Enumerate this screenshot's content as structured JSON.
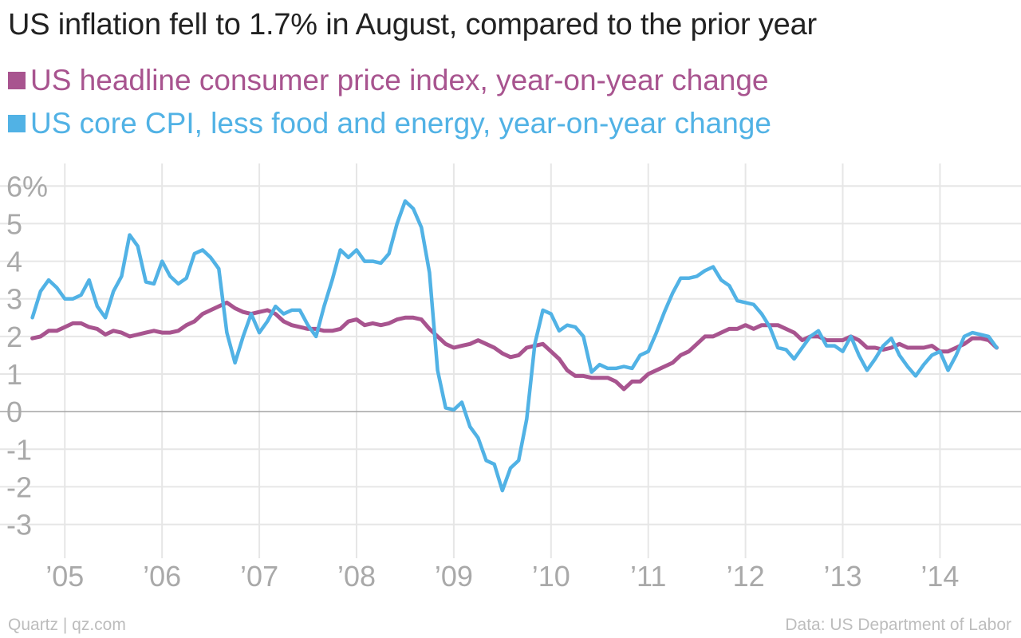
{
  "title": "US inflation fell to 1.7% in August, compared to the prior year",
  "footer": {
    "source_left": "Quartz | qz.com",
    "source_right": "Data: US Department of Labor"
  },
  "colors": {
    "headline": "#a8548f",
    "core": "#51b2e5",
    "grid": "#e6e6e6",
    "zero": "#aaaaaa",
    "tick": "#a9a9a9"
  },
  "chart_data": {
    "type": "line",
    "title": "US inflation fell to 1.7% in August, compared to the prior year",
    "xlabel": "",
    "ylabel": "",
    "ylim": [
      -3.9,
      6.6
    ],
    "yticks": [
      6,
      5,
      4,
      3,
      2,
      1,
      0,
      -1,
      -2,
      -3
    ],
    "ytick_labels": [
      "6%",
      "5",
      "4",
      "3",
      "2",
      "1",
      "0",
      "-1",
      "-2",
      "-3"
    ],
    "xlim": [
      "2004-05",
      "2014-11"
    ],
    "xticks": [
      "2005-01",
      "2006-01",
      "2007-01",
      "2008-01",
      "2009-01",
      "2010-01",
      "2011-01",
      "2012-01",
      "2013-01",
      "2014-01"
    ],
    "xtick_labels": [
      "’05",
      "’06",
      "’07",
      "’08",
      "’09",
      "’10",
      "’11",
      "’12",
      "’13",
      "’14"
    ],
    "grid": true,
    "legend_position": "top-left",
    "series": [
      {
        "name": "US headline consumer price index, year-on-year change",
        "color": "#a8548f",
        "points": [
          [
            "2004-09",
            1.95
          ],
          [
            "2004-10",
            2.0
          ],
          [
            "2004-11",
            2.15
          ],
          [
            "2004-12",
            2.15
          ],
          [
            "2005-01",
            2.25
          ],
          [
            "2005-02",
            2.35
          ],
          [
            "2005-03",
            2.35
          ],
          [
            "2005-04",
            2.25
          ],
          [
            "2005-05",
            2.2
          ],
          [
            "2005-06",
            2.05
          ],
          [
            "2005-07",
            2.15
          ],
          [
            "2005-08",
            2.1
          ],
          [
            "2005-09",
            2.0
          ],
          [
            "2005-10",
            2.05
          ],
          [
            "2005-11",
            2.1
          ],
          [
            "2005-12",
            2.15
          ],
          [
            "2006-01",
            2.1
          ],
          [
            "2006-02",
            2.1
          ],
          [
            "2006-03",
            2.15
          ],
          [
            "2006-04",
            2.3
          ],
          [
            "2006-05",
            2.4
          ],
          [
            "2006-06",
            2.6
          ],
          [
            "2006-07",
            2.7
          ],
          [
            "2006-08",
            2.8
          ],
          [
            "2006-09",
            2.9
          ],
          [
            "2006-10",
            2.75
          ],
          [
            "2006-11",
            2.65
          ],
          [
            "2006-12",
            2.6
          ],
          [
            "2007-01",
            2.65
          ],
          [
            "2007-02",
            2.7
          ],
          [
            "2007-03",
            2.6
          ],
          [
            "2007-04",
            2.4
          ],
          [
            "2007-05",
            2.3
          ],
          [
            "2007-06",
            2.25
          ],
          [
            "2007-07",
            2.2
          ],
          [
            "2007-08",
            2.2
          ],
          [
            "2007-09",
            2.15
          ],
          [
            "2007-10",
            2.15
          ],
          [
            "2007-11",
            2.2
          ],
          [
            "2007-12",
            2.4
          ],
          [
            "2008-01",
            2.45
          ],
          [
            "2008-02",
            2.3
          ],
          [
            "2008-03",
            2.35
          ],
          [
            "2008-04",
            2.3
          ],
          [
            "2008-05",
            2.35
          ],
          [
            "2008-06",
            2.45
          ],
          [
            "2008-07",
            2.5
          ],
          [
            "2008-08",
            2.5
          ],
          [
            "2008-09",
            2.45
          ],
          [
            "2008-10",
            2.2
          ],
          [
            "2008-11",
            2.0
          ],
          [
            "2008-12",
            1.8
          ],
          [
            "2009-01",
            1.7
          ],
          [
            "2009-02",
            1.75
          ],
          [
            "2009-03",
            1.8
          ],
          [
            "2009-04",
            1.9
          ],
          [
            "2009-05",
            1.8
          ],
          [
            "2009-06",
            1.7
          ],
          [
            "2009-07",
            1.55
          ],
          [
            "2009-08",
            1.45
          ],
          [
            "2009-09",
            1.5
          ],
          [
            "2009-10",
            1.7
          ],
          [
            "2009-11",
            1.75
          ],
          [
            "2009-12",
            1.8
          ],
          [
            "2010-01",
            1.6
          ],
          [
            "2010-02",
            1.4
          ],
          [
            "2010-03",
            1.1
          ],
          [
            "2010-04",
            0.95
          ],
          [
            "2010-05",
            0.95
          ],
          [
            "2010-06",
            0.9
          ],
          [
            "2010-07",
            0.9
          ],
          [
            "2010-08",
            0.9
          ],
          [
            "2010-09",
            0.8
          ],
          [
            "2010-10",
            0.6
          ],
          [
            "2010-11",
            0.8
          ],
          [
            "2010-12",
            0.8
          ],
          [
            "2011-01",
            1.0
          ],
          [
            "2011-02",
            1.1
          ],
          [
            "2011-03",
            1.2
          ],
          [
            "2011-04",
            1.3
          ],
          [
            "2011-05",
            1.5
          ],
          [
            "2011-06",
            1.6
          ],
          [
            "2011-07",
            1.8
          ],
          [
            "2011-08",
            2.0
          ],
          [
            "2011-09",
            2.0
          ],
          [
            "2011-10",
            2.1
          ],
          [
            "2011-11",
            2.2
          ],
          [
            "2011-12",
            2.2
          ],
          [
            "2012-01",
            2.3
          ],
          [
            "2012-02",
            2.2
          ],
          [
            "2012-03",
            2.3
          ],
          [
            "2012-04",
            2.3
          ],
          [
            "2012-05",
            2.3
          ],
          [
            "2012-06",
            2.2
          ],
          [
            "2012-07",
            2.1
          ],
          [
            "2012-08",
            1.9
          ],
          [
            "2012-09",
            2.0
          ],
          [
            "2012-10",
            2.0
          ],
          [
            "2012-11",
            1.9
          ],
          [
            "2012-12",
            1.9
          ],
          [
            "2013-01",
            1.9
          ],
          [
            "2013-02",
            2.0
          ],
          [
            "2013-03",
            1.9
          ],
          [
            "2013-04",
            1.7
          ],
          [
            "2013-05",
            1.7
          ],
          [
            "2013-06",
            1.65
          ],
          [
            "2013-07",
            1.7
          ],
          [
            "2013-08",
            1.8
          ],
          [
            "2013-09",
            1.7
          ],
          [
            "2013-10",
            1.7
          ],
          [
            "2013-11",
            1.7
          ],
          [
            "2013-12",
            1.75
          ],
          [
            "2014-01",
            1.6
          ],
          [
            "2014-02",
            1.6
          ],
          [
            "2014-03",
            1.7
          ],
          [
            "2014-04",
            1.8
          ],
          [
            "2014-05",
            1.95
          ],
          [
            "2014-06",
            1.95
          ],
          [
            "2014-07",
            1.9
          ],
          [
            "2014-08",
            1.7
          ]
        ]
      },
      {
        "name": "US core CPI, less food and energy, year-on-year change",
        "color": "#51b2e5",
        "points": [
          [
            "2004-09",
            2.5
          ],
          [
            "2004-10",
            3.2
          ],
          [
            "2004-11",
            3.5
          ],
          [
            "2004-12",
            3.3
          ],
          [
            "2005-01",
            3.0
          ],
          [
            "2005-02",
            3.0
          ],
          [
            "2005-03",
            3.1
          ],
          [
            "2005-04",
            3.5
          ],
          [
            "2005-05",
            2.8
          ],
          [
            "2005-06",
            2.5
          ],
          [
            "2005-07",
            3.2
          ],
          [
            "2005-08",
            3.6
          ],
          [
            "2005-09",
            4.7
          ],
          [
            "2005-10",
            4.4
          ],
          [
            "2005-11",
            3.45
          ],
          [
            "2005-12",
            3.4
          ],
          [
            "2006-01",
            4.0
          ],
          [
            "2006-02",
            3.6
          ],
          [
            "2006-03",
            3.4
          ],
          [
            "2006-04",
            3.55
          ],
          [
            "2006-05",
            4.2
          ],
          [
            "2006-06",
            4.3
          ],
          [
            "2006-07",
            4.1
          ],
          [
            "2006-08",
            3.8
          ],
          [
            "2006-09",
            2.1
          ],
          [
            "2006-10",
            1.3
          ],
          [
            "2006-11",
            2.0
          ],
          [
            "2006-12",
            2.6
          ],
          [
            "2007-01",
            2.1
          ],
          [
            "2007-02",
            2.4
          ],
          [
            "2007-03",
            2.8
          ],
          [
            "2007-04",
            2.6
          ],
          [
            "2007-05",
            2.7
          ],
          [
            "2007-06",
            2.7
          ],
          [
            "2007-07",
            2.3
          ],
          [
            "2007-08",
            2.0
          ],
          [
            "2007-09",
            2.8
          ],
          [
            "2007-10",
            3.5
          ],
          [
            "2007-11",
            4.3
          ],
          [
            "2007-12",
            4.1
          ],
          [
            "2008-01",
            4.3
          ],
          [
            "2008-02",
            4.0
          ],
          [
            "2008-03",
            4.0
          ],
          [
            "2008-04",
            3.95
          ],
          [
            "2008-05",
            4.2
          ],
          [
            "2008-06",
            5.0
          ],
          [
            "2008-07",
            5.6
          ],
          [
            "2008-08",
            5.4
          ],
          [
            "2008-09",
            4.9
          ],
          [
            "2008-10",
            3.7
          ],
          [
            "2008-11",
            1.1
          ],
          [
            "2008-12",
            0.1
          ],
          [
            "2009-01",
            0.05
          ],
          [
            "2009-02",
            0.25
          ],
          [
            "2009-03",
            -0.4
          ],
          [
            "2009-04",
            -0.7
          ],
          [
            "2009-05",
            -1.3
          ],
          [
            "2009-06",
            -1.4
          ],
          [
            "2009-07",
            -2.1
          ],
          [
            "2009-08",
            -1.5
          ],
          [
            "2009-09",
            -1.3
          ],
          [
            "2009-10",
            -0.2
          ],
          [
            "2009-11",
            1.8
          ],
          [
            "2009-12",
            2.7
          ],
          [
            "2010-01",
            2.6
          ],
          [
            "2010-02",
            2.15
          ],
          [
            "2010-03",
            2.3
          ],
          [
            "2010-04",
            2.25
          ],
          [
            "2010-05",
            2.0
          ],
          [
            "2010-06",
            1.05
          ],
          [
            "2010-07",
            1.25
          ],
          [
            "2010-08",
            1.15
          ],
          [
            "2010-09",
            1.15
          ],
          [
            "2010-10",
            1.2
          ],
          [
            "2010-11",
            1.15
          ],
          [
            "2010-12",
            1.5
          ],
          [
            "2011-01",
            1.6
          ],
          [
            "2011-02",
            2.1
          ],
          [
            "2011-03",
            2.65
          ],
          [
            "2011-04",
            3.15
          ],
          [
            "2011-05",
            3.55
          ],
          [
            "2011-06",
            3.55
          ],
          [
            "2011-07",
            3.6
          ],
          [
            "2011-08",
            3.75
          ],
          [
            "2011-09",
            3.85
          ],
          [
            "2011-10",
            3.5
          ],
          [
            "2011-11",
            3.35
          ],
          [
            "2011-12",
            2.95
          ],
          [
            "2012-01",
            2.9
          ],
          [
            "2012-02",
            2.85
          ],
          [
            "2012-03",
            2.6
          ],
          [
            "2012-04",
            2.25
          ],
          [
            "2012-05",
            1.7
          ],
          [
            "2012-06",
            1.65
          ],
          [
            "2012-07",
            1.4
          ],
          [
            "2012-08",
            1.7
          ],
          [
            "2012-09",
            2.0
          ],
          [
            "2012-10",
            2.15
          ],
          [
            "2012-11",
            1.75
          ],
          [
            "2012-12",
            1.75
          ],
          [
            "2013-01",
            1.6
          ],
          [
            "2013-02",
            2.0
          ],
          [
            "2013-03",
            1.5
          ],
          [
            "2013-04",
            1.1
          ],
          [
            "2013-05",
            1.4
          ],
          [
            "2013-06",
            1.75
          ],
          [
            "2013-07",
            1.95
          ],
          [
            "2013-08",
            1.5
          ],
          [
            "2013-09",
            1.2
          ],
          [
            "2013-10",
            0.95
          ],
          [
            "2013-11",
            1.25
          ],
          [
            "2013-12",
            1.5
          ],
          [
            "2014-01",
            1.6
          ],
          [
            "2014-02",
            1.1
          ],
          [
            "2014-03",
            1.5
          ],
          [
            "2014-04",
            2.0
          ],
          [
            "2014-05",
            2.1
          ],
          [
            "2014-06",
            2.05
          ],
          [
            "2014-07",
            2.0
          ],
          [
            "2014-08",
            1.7
          ]
        ]
      }
    ]
  }
}
